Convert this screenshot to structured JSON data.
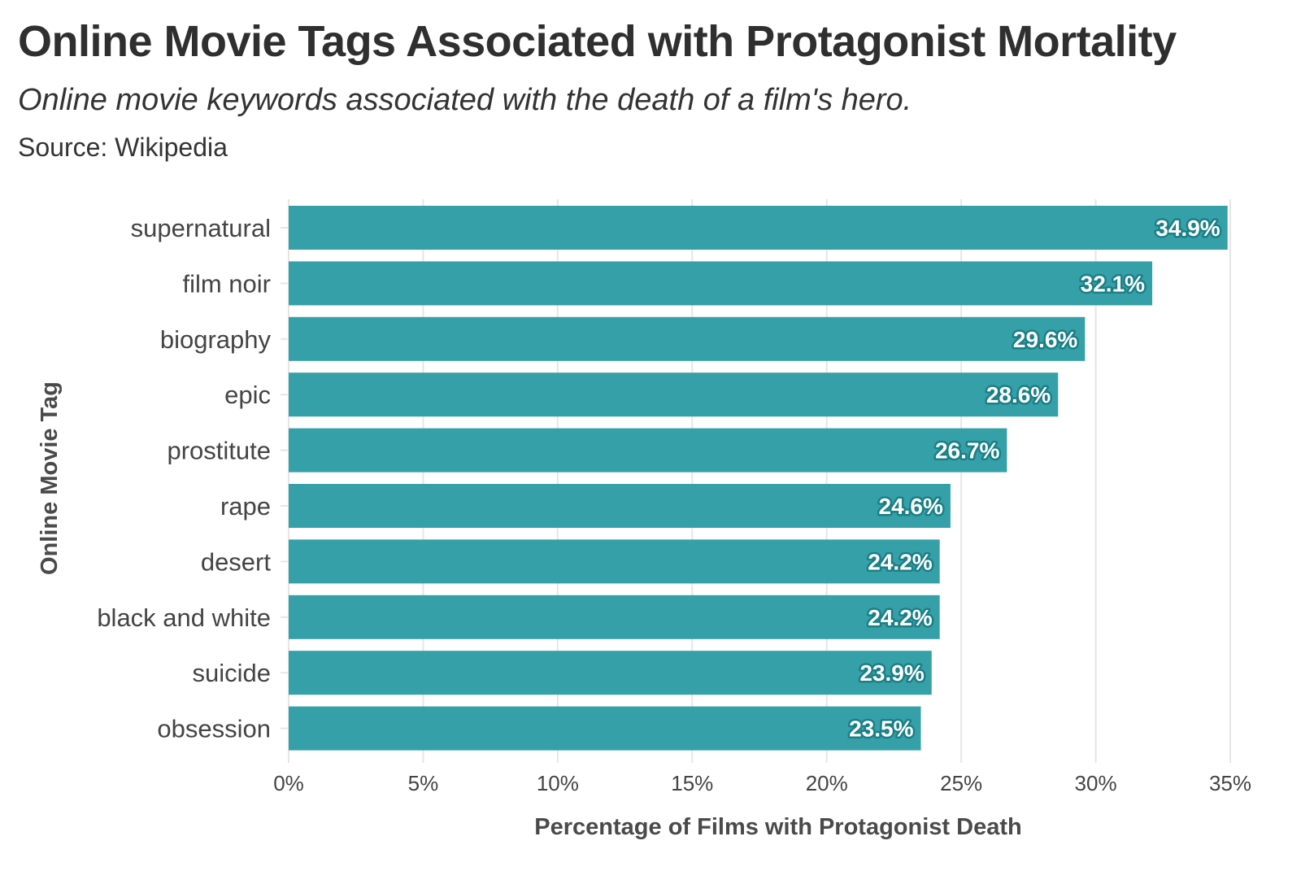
{
  "title": "Online Movie Tags Associated with Protagonist Mortality",
  "subtitle": "Online movie keywords associated with the death of a film's hero.",
  "source": "Source: Wikipedia",
  "colors": {
    "bar": "#35a0a8",
    "value_label_outline": "#1a7f86",
    "grid": "#e6e6e6"
  },
  "chart_data": {
    "type": "bar",
    "orientation": "horizontal",
    "categories": [
      "supernatural",
      "film noir",
      "biography",
      "epic",
      "prostitute",
      "rape",
      "desert",
      "black and white",
      "suicide",
      "obsession"
    ],
    "values": [
      34.9,
      32.1,
      29.6,
      28.6,
      26.7,
      24.6,
      24.2,
      24.2,
      23.9,
      23.5
    ],
    "value_labels": [
      "34.9%",
      "32.1%",
      "29.6%",
      "28.6%",
      "26.7%",
      "24.6%",
      "24.2%",
      "24.2%",
      "23.9%",
      "23.5%"
    ],
    "xlabel": "Percentage of Films with Protagonist Death",
    "ylabel": "Online Movie Tag",
    "xlim": [
      0,
      35
    ],
    "xticks": [
      0,
      5,
      10,
      15,
      20,
      25,
      30,
      35
    ],
    "xtick_labels": [
      "0%",
      "5%",
      "10%",
      "15%",
      "20%",
      "25%",
      "30%",
      "35%"
    ],
    "grid": true,
    "legend": "none"
  }
}
